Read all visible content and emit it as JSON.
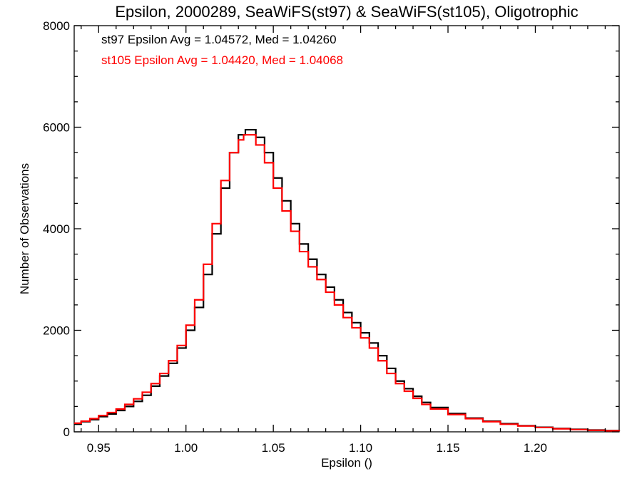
{
  "chart_data": {
    "type": "line",
    "style": "step-histogram",
    "title": "Epsilon, 2000289, SeaWiFS(st97) & SeaWiFS(st105), Oligotrophic",
    "xlabel": "Epsilon ()",
    "ylabel": "Number of Observations",
    "xlim": [
      0.936,
      1.248
    ],
    "ylim": [
      0,
      8000
    ],
    "x_ticks": [
      "0.95",
      "1.00",
      "1.05",
      "1.10",
      "1.15",
      "1.20"
    ],
    "x_tick_values": [
      0.95,
      1.0,
      1.05,
      1.1,
      1.15,
      1.2
    ],
    "y_ticks": [
      "0",
      "2000",
      "4000",
      "6000",
      "8000"
    ],
    "y_tick_values": [
      0,
      2000,
      4000,
      6000,
      8000
    ],
    "grid": false,
    "annotations": [
      {
        "text": "st97 Epsilon Avg = 1.04572, Med = 1.04260",
        "color": "#000000"
      },
      {
        "text": "st105 Epsilon Avg = 1.04420, Med = 1.04068",
        "color": "#ff0000"
      }
    ],
    "series": [
      {
        "color": "#000000",
        "x": [
          0.936,
          0.94,
          0.945,
          0.95,
          0.955,
          0.96,
          0.965,
          0.97,
          0.975,
          0.98,
          0.985,
          0.99,
          0.995,
          1.0,
          1.005,
          1.01,
          1.015,
          1.02,
          1.025,
          1.03,
          1.034,
          1.04,
          1.045,
          1.05,
          1.055,
          1.06,
          1.065,
          1.07,
          1.075,
          1.08,
          1.085,
          1.09,
          1.095,
          1.1,
          1.105,
          1.11,
          1.115,
          1.12,
          1.125,
          1.13,
          1.135,
          1.14,
          1.15,
          1.16,
          1.17,
          1.18,
          1.19,
          1.2,
          1.21,
          1.22,
          1.23,
          1.24,
          1.248
        ],
        "values": [
          150,
          200,
          240,
          300,
          350,
          420,
          500,
          600,
          720,
          900,
          1100,
          1350,
          1650,
          2000,
          2450,
          3100,
          3900,
          4800,
          5500,
          5850,
          5950,
          5800,
          5500,
          5000,
          4550,
          4100,
          3700,
          3400,
          3100,
          2850,
          2600,
          2350,
          2150,
          1950,
          1750,
          1500,
          1250,
          1000,
          850,
          700,
          580,
          480,
          360,
          270,
          210,
          160,
          120,
          90,
          65,
          50,
          35,
          25,
          15
        ]
      },
      {
        "color": "#ff0000",
        "x": [
          0.936,
          0.94,
          0.945,
          0.95,
          0.955,
          0.96,
          0.965,
          0.97,
          0.975,
          0.98,
          0.985,
          0.99,
          0.995,
          1.0,
          1.005,
          1.01,
          1.015,
          1.02,
          1.025,
          1.03,
          1.033,
          1.04,
          1.045,
          1.05,
          1.055,
          1.06,
          1.065,
          1.07,
          1.075,
          1.08,
          1.085,
          1.09,
          1.095,
          1.1,
          1.105,
          1.11,
          1.115,
          1.12,
          1.125,
          1.13,
          1.135,
          1.14,
          1.15,
          1.16,
          1.17,
          1.18,
          1.19,
          1.2,
          1.21,
          1.22,
          1.23,
          1.24,
          1.248
        ],
        "values": [
          170,
          210,
          260,
          320,
          380,
          450,
          540,
          650,
          780,
          950,
          1150,
          1400,
          1700,
          2100,
          2600,
          3300,
          4100,
          4950,
          5500,
          5750,
          5850,
          5650,
          5300,
          4800,
          4350,
          3950,
          3550,
          3250,
          3000,
          2750,
          2500,
          2250,
          2050,
          1850,
          1650,
          1400,
          1150,
          950,
          800,
          660,
          540,
          450,
          340,
          260,
          200,
          150,
          115,
          85,
          60,
          45,
          30,
          20,
          12
        ]
      }
    ]
  }
}
